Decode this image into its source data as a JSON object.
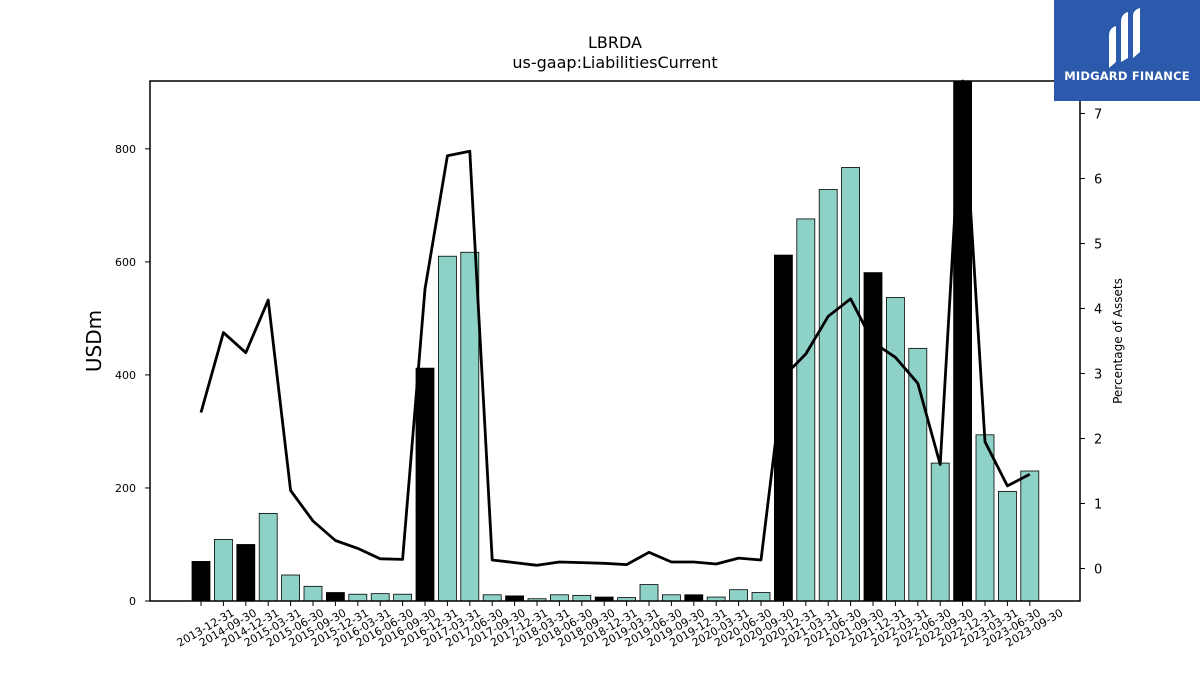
{
  "logo": {
    "text": "MIDGARD FINANCE"
  },
  "chart_data": {
    "type": "bar",
    "title": "LBRDA",
    "subtitle": "us-gaap:LiabilitiesCurrent",
    "ylabel": "USDm",
    "y2label": "Percentage of Assets",
    "ylim": [
      0,
      920
    ],
    "y2lim": [
      -0.5,
      7.5
    ],
    "yticks": [
      0,
      200,
      400,
      600,
      800
    ],
    "y2ticks": [
      0,
      1,
      2,
      3,
      4,
      5,
      6,
      7
    ],
    "colors": {
      "annual_bar": "#000000",
      "quarter_bar": "#8ed1c6",
      "line": "#000000"
    },
    "categories": [
      "2013-12-31",
      "2014-09-30",
      "2014-12-31",
      "2015-03-31",
      "2015-06-30",
      "2015-09-30",
      "2015-12-31",
      "2016-03-31",
      "2016-06-30",
      "2016-09-30",
      "2016-12-31",
      "2017-03-31",
      "2017-06-30",
      "2017-09-30",
      "2017-12-31",
      "2018-03-31",
      "2018-06-30",
      "2018-09-30",
      "2018-12-31",
      "2019-03-31",
      "2019-06-30",
      "2019-09-30",
      "2019-12-31",
      "2020-03-31",
      "2020-06-30",
      "2020-09-30",
      "2020-12-31",
      "2021-03-31",
      "2021-06-30",
      "2021-09-30",
      "2021-12-31",
      "2022-03-31",
      "2022-06-30",
      "2022-09-30",
      "2022-12-31",
      "2023-03-31",
      "2023-06-30",
      "2023-09-30"
    ],
    "series": [
      {
        "values": [
          70,
          109,
          100,
          155,
          46,
          26,
          15,
          12,
          13,
          12,
          412,
          610,
          617,
          11,
          9,
          4,
          11,
          10,
          7,
          6,
          29,
          11,
          11,
          7,
          20,
          15,
          612,
          676,
          728,
          767,
          581,
          537,
          447,
          244,
          920,
          294,
          194,
          230
        ],
        "annual_flags": [
          1,
          0,
          1,
          0,
          0,
          0,
          1,
          0,
          0,
          0,
          1,
          0,
          0,
          0,
          1,
          0,
          0,
          0,
          1,
          0,
          0,
          0,
          1,
          0,
          0,
          0,
          1,
          0,
          0,
          0,
          1,
          0,
          0,
          0,
          1,
          0,
          0,
          0
        ]
      },
      {
        "values": [
          2.4,
          3.63,
          3.32,
          4.13,
          1.2,
          0.73,
          0.43,
          0.31,
          0.15,
          0.14,
          4.3,
          6.35,
          6.42,
          0.13,
          0.09,
          0.05,
          0.1,
          0.09,
          0.08,
          0.06,
          0.25,
          0.1,
          0.1,
          0.07,
          0.16,
          0.13,
          2.95,
          3.3,
          3.88,
          4.15,
          3.48,
          3.25,
          2.85,
          1.6,
          7.6,
          1.95,
          1.27,
          1.45
        ]
      }
    ]
  }
}
